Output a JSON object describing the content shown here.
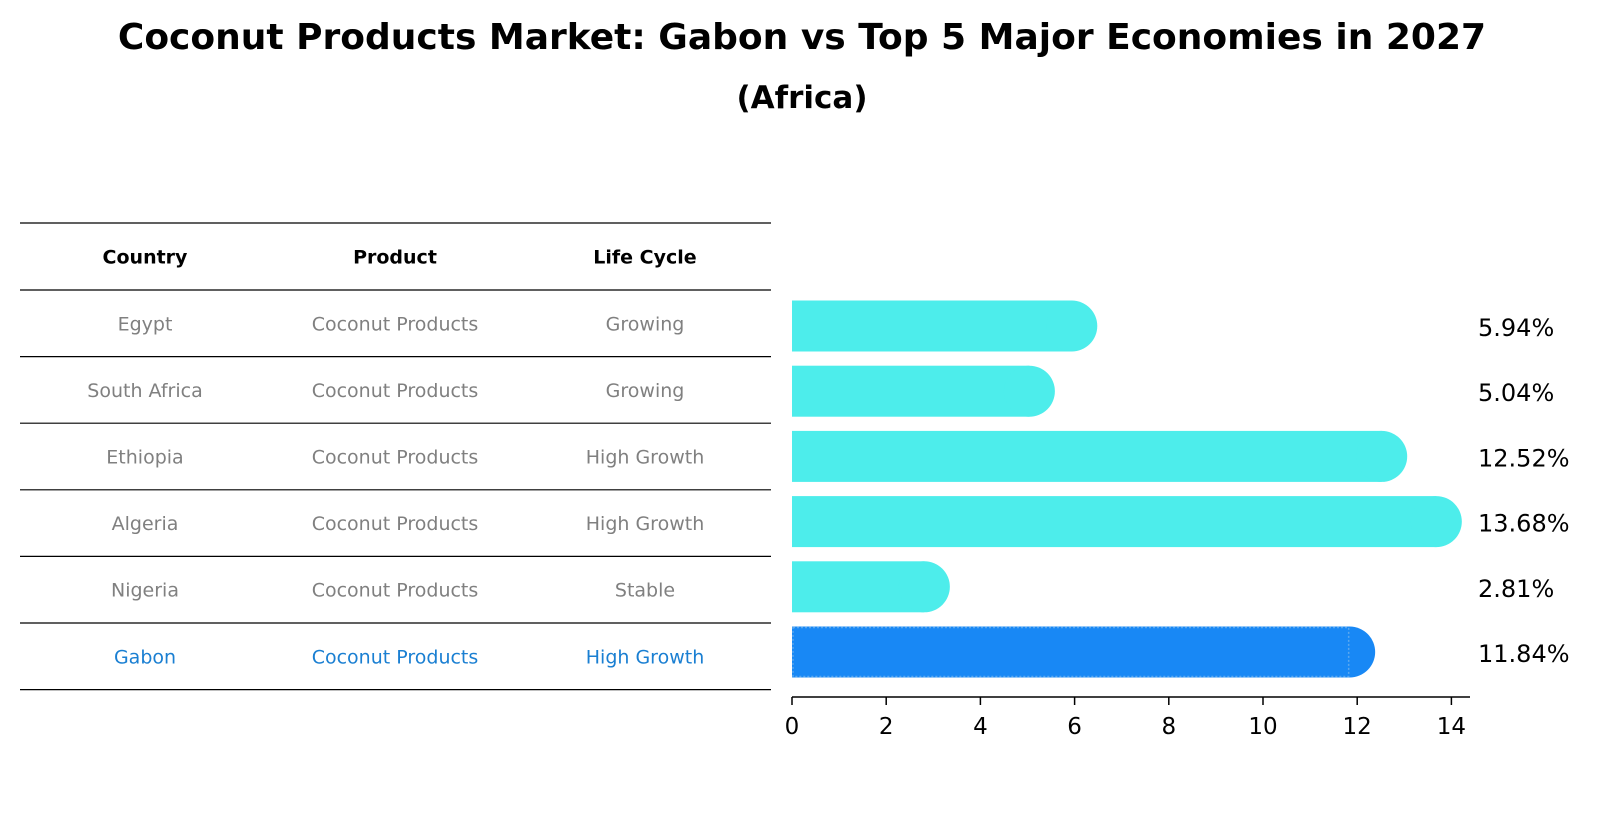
{
  "title": "Coconut Products Market: Gabon vs Top 5 Major Economies in 2027",
  "subtitle": "(Africa)",
  "table": {
    "headers": [
      "Country",
      "Product",
      "Life Cycle"
    ],
    "rows": [
      {
        "country": "Egypt",
        "product": "Coconut Products",
        "life_cycle": "Growing",
        "highlight": false
      },
      {
        "country": "South Africa",
        "product": "Coconut Products",
        "life_cycle": "Growing",
        "highlight": false
      },
      {
        "country": "Ethiopia",
        "product": "Coconut Products",
        "life_cycle": "High Growth",
        "highlight": false
      },
      {
        "country": "Algeria",
        "product": "Coconut Products",
        "life_cycle": "High Growth",
        "highlight": false
      },
      {
        "country": "Nigeria",
        "product": "Coconut Products",
        "life_cycle": "Stable",
        "highlight": false
      },
      {
        "country": "Gabon",
        "product": "Coconut Products",
        "life_cycle": "High Growth",
        "highlight": true
      }
    ]
  },
  "colors": {
    "bar": "#4DEDEB",
    "highlight_bar": "#1888F5",
    "highlight_text": "#1A7FD2",
    "muted_text": "#808080"
  },
  "chart_data": {
    "type": "bar",
    "orientation": "horizontal",
    "categories": [
      "Egypt",
      "South Africa",
      "Ethiopia",
      "Algeria",
      "Nigeria",
      "Gabon"
    ],
    "values": [
      5.94,
      5.04,
      12.52,
      13.68,
      2.81,
      11.84
    ],
    "labels": [
      "5.94%",
      "5.04%",
      "12.52%",
      "13.68%",
      "2.81%",
      "11.84%"
    ],
    "highlight": "Gabon",
    "xlim": [
      0,
      14.4
    ],
    "xticks": [
      0,
      2,
      4,
      6,
      8,
      10,
      12,
      14
    ]
  }
}
